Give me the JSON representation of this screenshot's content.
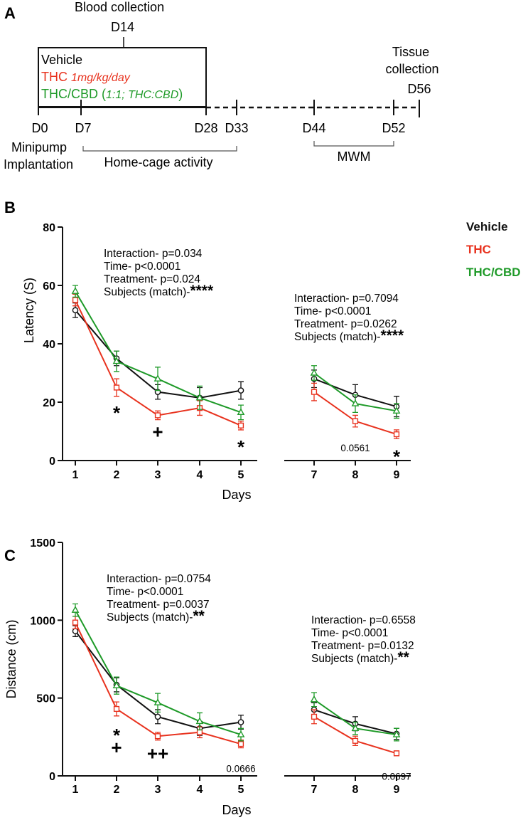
{
  "colors": {
    "vehicle": "#111111",
    "thc": "#e8321e",
    "thccbd": "#1e9a28"
  },
  "panel_a": {
    "letter": "A",
    "blood_collection": "Blood collection",
    "blood_day": "D14",
    "groups": [
      "Vehicle",
      "THC",
      "THC/CBD"
    ],
    "thc_dose": "1mg/kg/day",
    "thccbd_ratio": "1:1; THC:CBD",
    "tissue_line1": "Tissue",
    "tissue_line2": "collection",
    "tissue_day": "D56",
    "days": [
      "D0",
      "D7",
      "D28",
      "D33",
      "D44",
      "D52"
    ],
    "minipump_line1": "Minipump",
    "minipump_line2": "Implantation",
    "home_cage": "Home-cage activity",
    "mwm": "MWM"
  },
  "legend": [
    "Vehicle",
    "THC",
    "THC/CBD"
  ],
  "chart_data": [
    {
      "type": "line",
      "panel": "B",
      "xlabel": "Days",
      "ylabel": "Latency (S)",
      "ylim": [
        0,
        80
      ],
      "yticks": [
        0,
        20,
        40,
        60,
        80
      ],
      "x": [
        1,
        2,
        3,
        4,
        5,
        7,
        8,
        9
      ],
      "series": [
        {
          "name": "Vehicle",
          "values": [
            51.5,
            35,
            23.5,
            21.5,
            24,
            28,
            22.5,
            18.5
          ],
          "errors": [
            2.5,
            2.5,
            2.5,
            3.5,
            3,
            3,
            3.5,
            3.5
          ]
        },
        {
          "name": "THC",
          "values": [
            55,
            25,
            15.5,
            18,
            12,
            23.5,
            13.5,
            9
          ],
          "errors": [
            2,
            3,
            1.5,
            2.5,
            1.5,
            3,
            2,
            1.5
          ]
        },
        {
          "name": "THC/CBD",
          "values": [
            58,
            34,
            28,
            21.5,
            16.5,
            30,
            19.5,
            17
          ],
          "errors": [
            2,
            3.5,
            4,
            4,
            2.5,
            2.5,
            3,
            2.5
          ]
        }
      ],
      "stats_left": [
        "Interaction- p=0.034",
        "Time- p<0.0001",
        "Treatment- p=0.024",
        "Subjects (match)-",
        "****"
      ],
      "stats_right": [
        "Interaction- p=0.7094",
        "Time- p<0.0001",
        "Treatment- p=0.0262",
        "Subjects (match)-",
        "****"
      ],
      "annotations": [
        {
          "x": 2,
          "text": "*"
        },
        {
          "x": 3,
          "text": "+"
        },
        {
          "x": 5,
          "text": "*"
        },
        {
          "x": 8,
          "text": "0.0561"
        },
        {
          "x": 9,
          "text": "*"
        }
      ]
    },
    {
      "type": "line",
      "panel": "C",
      "xlabel": "Days",
      "ylabel": "Distance (cm)",
      "ylim": [
        0,
        1500
      ],
      "yticks": [
        0,
        500,
        1000,
        1500
      ],
      "x": [
        1,
        2,
        3,
        4,
        5,
        7,
        8,
        9
      ],
      "series": [
        {
          "name": "Vehicle",
          "values": [
            930,
            585,
            380,
            305,
            345,
            425,
            335,
            270
          ],
          "errors": [
            35,
            45,
            45,
            45,
            45,
            45,
            45,
            35
          ]
        },
        {
          "name": "THC",
          "values": [
            985,
            430,
            255,
            280,
            205,
            380,
            225,
            145
          ],
          "errors": [
            40,
            45,
            25,
            35,
            25,
            45,
            30,
            15
          ]
        },
        {
          "name": "THC/CBD",
          "values": [
            1065,
            580,
            470,
            350,
            265,
            490,
            305,
            265
          ],
          "errors": [
            40,
            55,
            60,
            55,
            40,
            45,
            40,
            40
          ]
        }
      ],
      "stats_left": [
        "Interaction- p=0.0754",
        "Time- p<0.0001",
        "Treatment- p=0.0037",
        "Subjects (match)-",
        "**"
      ],
      "stats_right": [
        "Interaction- p=0.6558",
        "Time- p<0.0001",
        "Treatment- p=0.0132",
        "Subjects (match)-",
        "**"
      ],
      "annotations": [
        {
          "x": 2,
          "text": "*"
        },
        {
          "x": 2,
          "text": "+"
        },
        {
          "x": 3,
          "text": "++"
        },
        {
          "x": 5,
          "text": "0.0666"
        },
        {
          "x": 9,
          "text": "0.0697"
        }
      ]
    }
  ]
}
